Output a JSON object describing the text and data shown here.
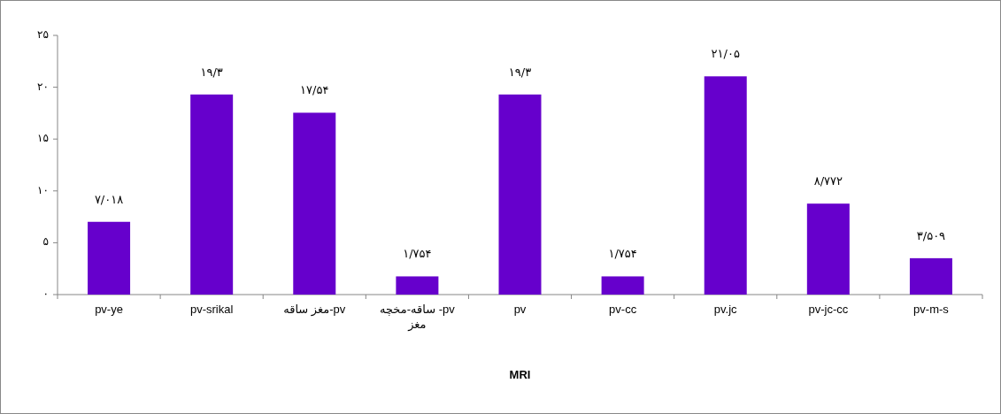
{
  "chart_data": {
    "type": "bar",
    "xlabel": "MRI",
    "categories": [
      "pv-ye",
      "pv-srikal",
      "مغز ساقه-pv",
      "ساقه-مخچه -pv مغز",
      "pv",
      "pv-cc",
      "pv.jc",
      "pv-jc-cc",
      "pv-m-s"
    ],
    "values": [
      7.018,
      19.3,
      17.54,
      1.754,
      19.3,
      1.754,
      21.05,
      8.772,
      3.509
    ],
    "value_labels": [
      "۷/۰۱۸",
      "۱۹/۳",
      "۱۷/۵۴",
      "۱/۷۵۴",
      "۱۹/۳",
      "۱/۷۵۴",
      "۲۱/۰۵",
      "۸/۷۷۲",
      "۳/۵۰۹"
    ],
    "color": "#6600cc",
    "ylim": [
      0,
      25
    ],
    "yticks": [
      {
        "value": 0,
        "label": "۰"
      },
      {
        "value": 5,
        "label": "۵"
      },
      {
        "value": 10,
        "label": "۱۰"
      },
      {
        "value": 15,
        "label": "۱۵"
      },
      {
        "value": 20,
        "label": "۲۰"
      },
      {
        "value": 25,
        "label": "۲۵"
      }
    ],
    "grid": false
  }
}
